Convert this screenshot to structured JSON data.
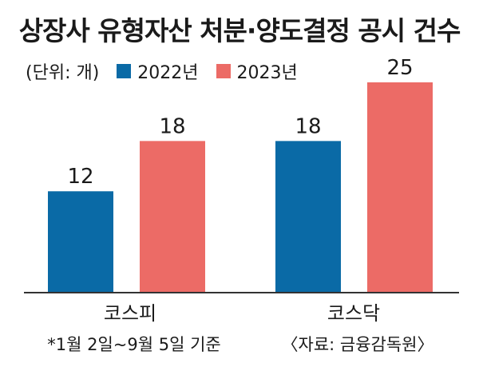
{
  "title": "상장사 유형자산 처분·양도결정 공시 건수",
  "unit_label": "(단위: 개)",
  "footnote": "*1월 2일~9월 5일 기준",
  "source": "〈자료: 금융감독원〉",
  "colors": {
    "series_2022": "#0a6aa6",
    "series_2023": "#ec6b66",
    "axis": "#333333"
  },
  "chart_data": {
    "type": "bar",
    "title": "상장사 유형자산 처분·양도결정 공시 건수",
    "categories": [
      "코스피",
      "코스닥"
    ],
    "series": [
      {
        "name": "2022년",
        "values": [
          12,
          18
        ]
      },
      {
        "name": "2023년",
        "values": [
          18,
          25
        ]
      }
    ],
    "ylim": [
      0,
      25
    ],
    "legend": "top-left",
    "grid": false
  }
}
